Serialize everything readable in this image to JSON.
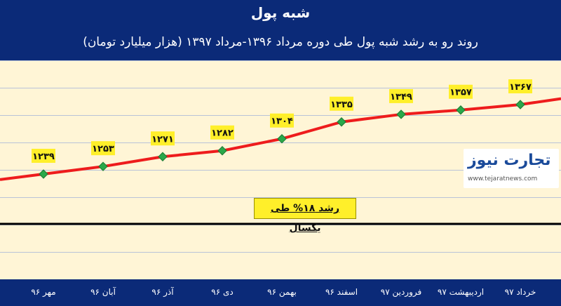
{
  "header": {
    "title": "شبه پول",
    "subtitle": "روند رو به رشد شبه پول طی دوره مرداد ۱۳۹۶-مرداد ۱۳۹۷ (هزار میلیارد تومان)"
  },
  "annotation": "رشد ۱۸% طی یکسال",
  "logo": {
    "name": "تجارت نیوز",
    "url": "www.tejaratnews.com"
  },
  "colors": {
    "line": "#ee1c1c",
    "marker": "#2aa84a",
    "label_bg": "#ffef2a",
    "background": "#fff5d6",
    "frame": "#0b2a78"
  },
  "chart_data": {
    "type": "line",
    "title": "شبه پول",
    "subtitle": "روند رو به رشد شبه پول طی دوره مرداد ۱۳۹۶-مرداد ۱۳۹۷ (هزار میلیارد تومان)",
    "categories": [
      "مهر ۹۶",
      "آبان ۹۶",
      "آذر ۹۶",
      "دی ۹۶",
      "بهمن ۹۶",
      "اسفند ۹۶",
      "فروردین ۹۷",
      "اردیبهشت ۹۷",
      "خرداد ۹۷"
    ],
    "values": [
      1239,
      1253,
      1271,
      1282,
      1304,
      1335,
      1349,
      1357,
      1367
    ],
    "data_labels": [
      "۱۲۳۹",
      "۱۲۵۳",
      "۱۲۷۱",
      "۱۲۸۲",
      "۱۳۰۴",
      "۱۳۳۵",
      "۱۳۴۹",
      "۱۳۵۷",
      "۱۳۶۷"
    ],
    "grid": true,
    "legend": "none"
  }
}
